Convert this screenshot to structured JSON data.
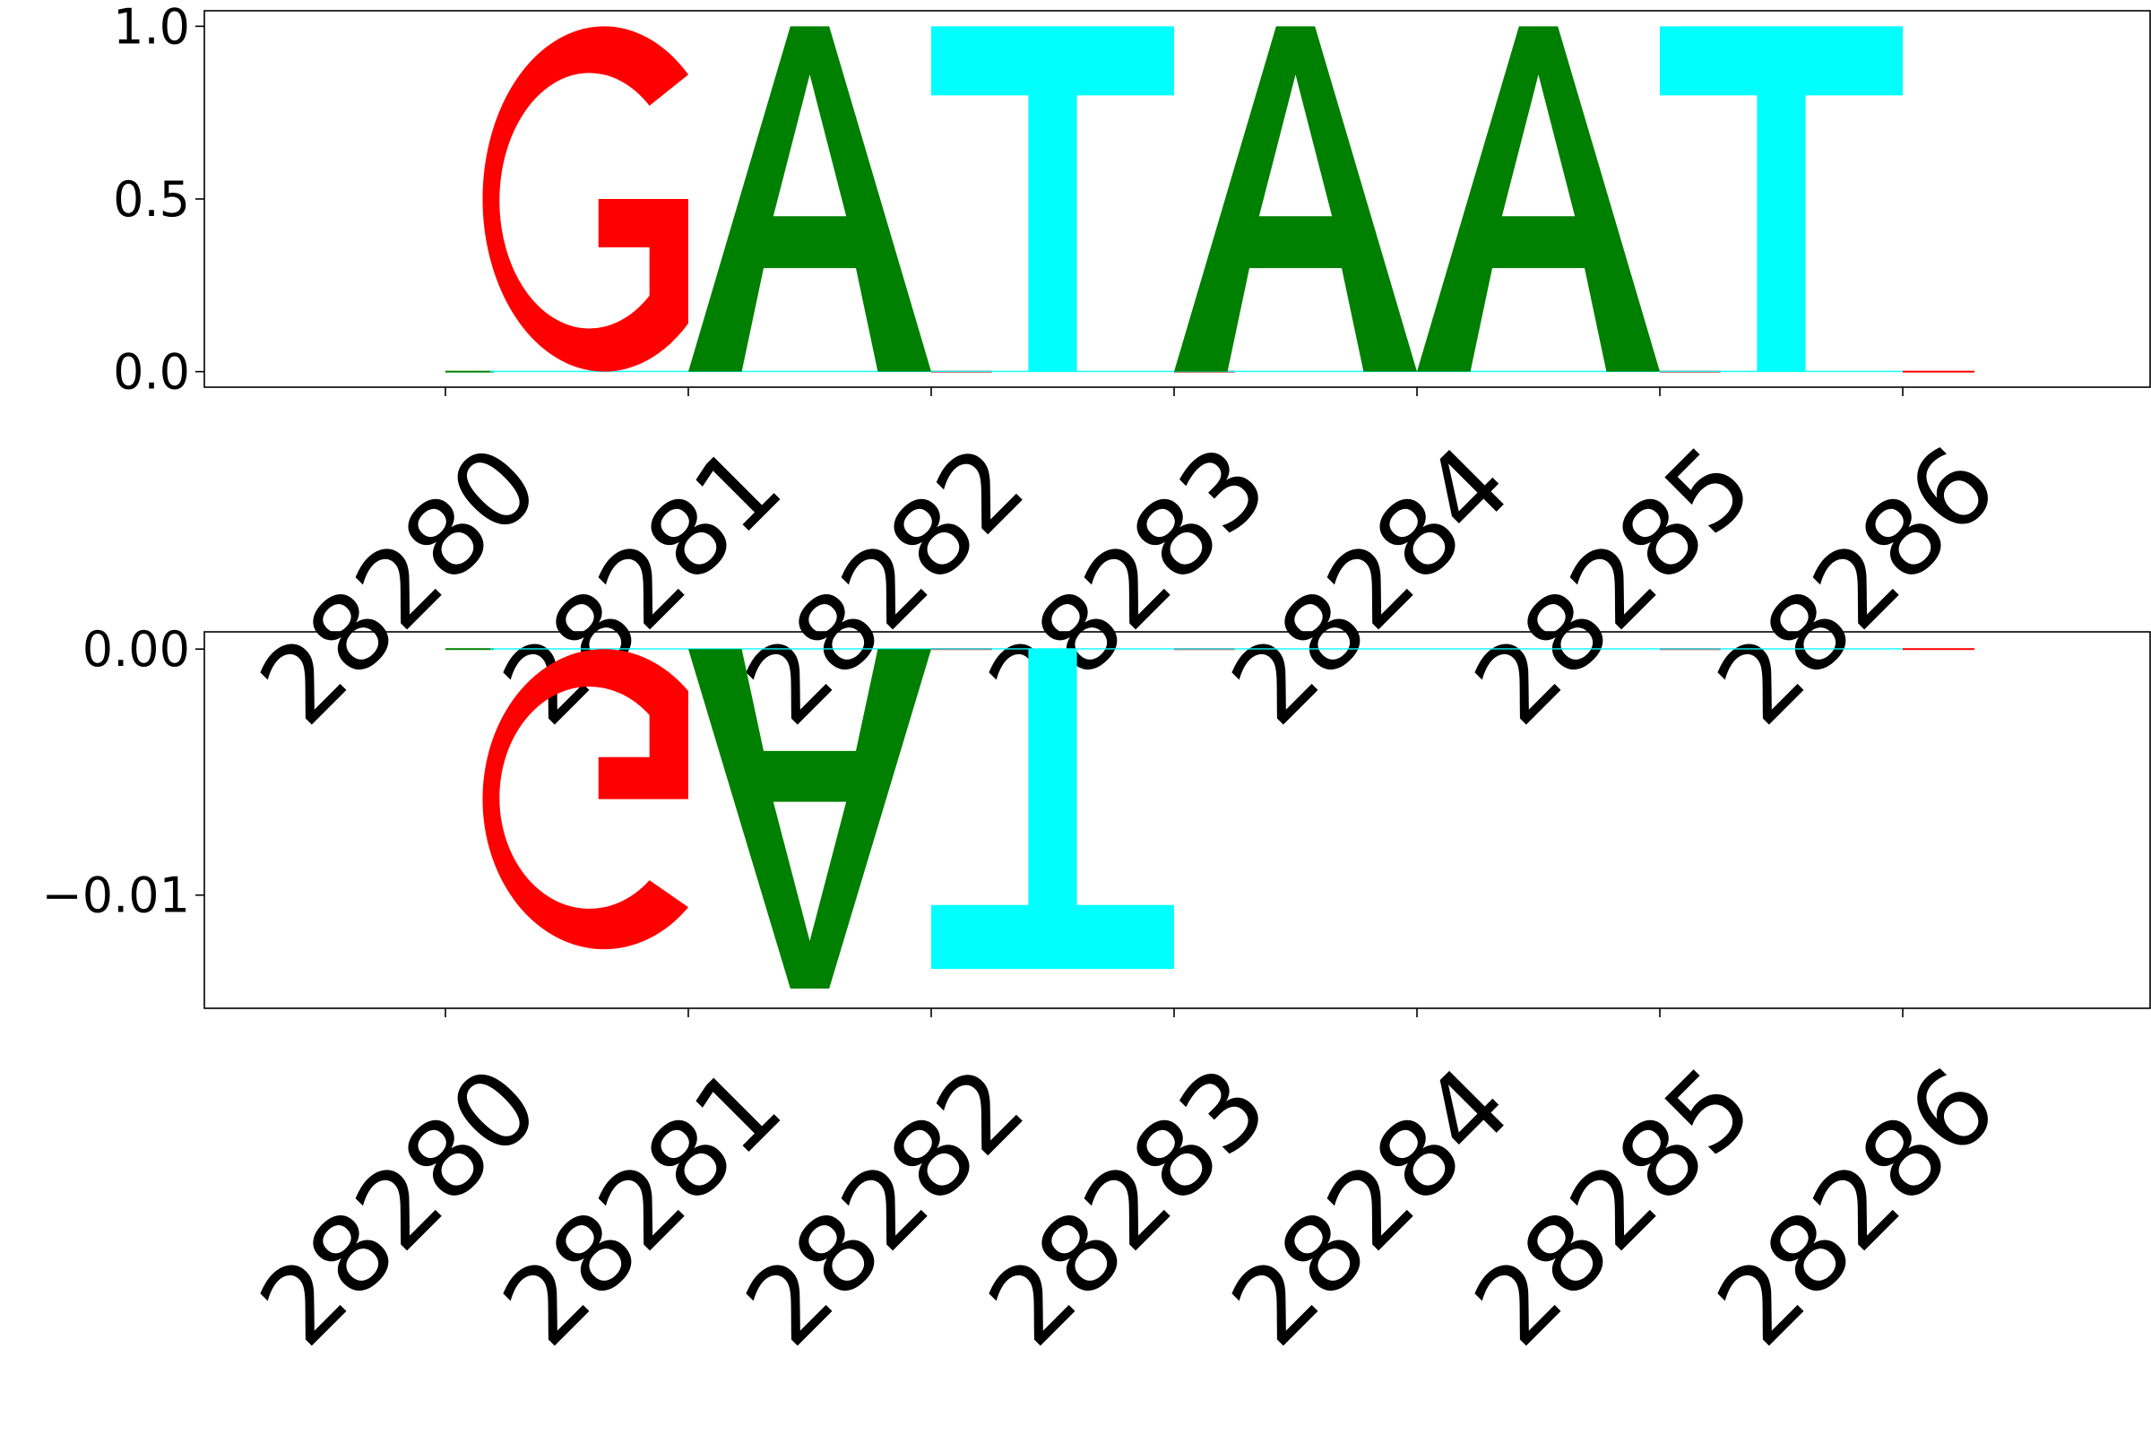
{
  "chart_data": [
    {
      "type": "sequence-logo",
      "title": "",
      "xlabel": "",
      "ylabel": "",
      "positions": [
        28280,
        28281,
        28282,
        28283,
        28284,
        28285,
        28286
      ],
      "x_tick_labels": [
        "28280",
        "28281",
        "28282",
        "28283",
        "28284",
        "28285",
        "28286"
      ],
      "ylim": [
        -0.045,
        1.045
      ],
      "y_ticks": [
        0.0,
        0.5,
        1.0
      ],
      "y_tick_labels": [
        "0.0",
        "0.5",
        "1.0"
      ],
      "letters": [
        {
          "position": 28280,
          "base": "G",
          "value": 1.0
        },
        {
          "position": 28281,
          "base": "A",
          "value": 1.0
        },
        {
          "position": 28282,
          "base": "T",
          "value": 1.0
        },
        {
          "position": 28283,
          "base": "A",
          "value": 1.0
        },
        {
          "position": 28284,
          "base": "A",
          "value": 1.0
        },
        {
          "position": 28285,
          "base": "T",
          "value": 1.0
        }
      ],
      "traces": [
        {
          "position": 28280,
          "base": "A",
          "value": 0.0
        },
        {
          "position": 28282,
          "base": "G",
          "value": 0.0
        },
        {
          "position": 28283,
          "base": "G",
          "value": 0.0
        },
        {
          "position": 28285,
          "base": "G",
          "value": 0.0
        },
        {
          "position": 28286,
          "base": "G",
          "value": 0.0
        }
      ],
      "base_colors": {
        "A": "#008000",
        "C": "#0000ff",
        "G": "#ff0000",
        "T": "#00ffff"
      }
    },
    {
      "type": "sequence-logo",
      "title": "",
      "xlabel": "",
      "ylabel": "",
      "positions": [
        28280,
        28281,
        28282,
        28283,
        28284,
        28285,
        28286
      ],
      "x_tick_labels": [
        "28280",
        "28281",
        "28282",
        "28283",
        "28284",
        "28285",
        "28286"
      ],
      "ylim": [
        -0.0146,
        0.0007
      ],
      "y_ticks": [
        0.0,
        -0.01
      ],
      "y_tick_labels": [
        "0.00",
        "−0.01"
      ],
      "letters": [
        {
          "position": 28280,
          "base": "G",
          "value": -0.0122
        },
        {
          "position": 28281,
          "base": "A",
          "value": -0.0138
        },
        {
          "position": 28282,
          "base": "T",
          "value": -0.013
        }
      ],
      "traces": [
        {
          "position": 28280,
          "base": "A",
          "value": 0.0
        },
        {
          "position": 28282,
          "base": "G",
          "value": 0.0
        },
        {
          "position": 28283,
          "base": "G",
          "value": 0.0
        },
        {
          "position": 28285,
          "base": "G",
          "value": 0.0
        },
        {
          "position": 28286,
          "base": "G",
          "value": 0.0
        }
      ],
      "base_colors": {
        "A": "#008000",
        "C": "#0000ff",
        "G": "#ff0000",
        "T": "#00ffff"
      }
    }
  ]
}
